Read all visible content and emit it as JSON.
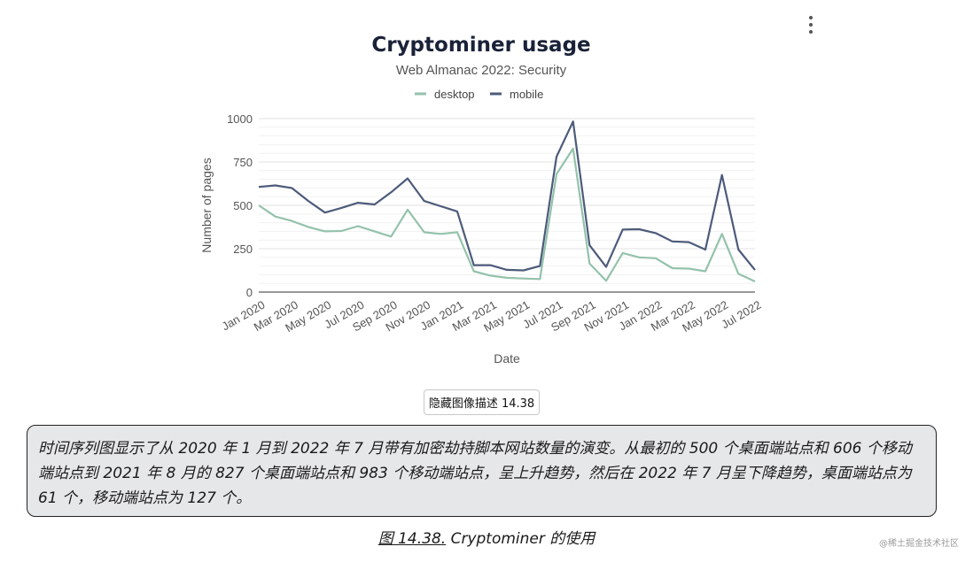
{
  "chart_data": {
    "type": "line",
    "title": "Cryptominer usage",
    "subtitle": "Web Almanac 2022: Security",
    "xlabel": "Date",
    "ylabel": "Number of pages",
    "ylim": [
      0,
      1000
    ],
    "yticks": [
      0,
      250,
      500,
      750,
      1000
    ],
    "xtick_labels": [
      "Jan 2020",
      "Mar 2020",
      "May 2020",
      "Jul 2020",
      "Sep 2020",
      "Nov 2020",
      "Jan 2021",
      "Mar 2021",
      "May 2021",
      "Jul 2021",
      "Sep 2021",
      "Nov 2021",
      "Jan 2022",
      "Mar 2022",
      "May 2022",
      "Jul 2022"
    ],
    "x": [
      "2020-01",
      "2020-02",
      "2020-03",
      "2020-04",
      "2020-05",
      "2020-06",
      "2020-07",
      "2020-08",
      "2020-09",
      "2020-10",
      "2020-11",
      "2020-12",
      "2021-01",
      "2021-02",
      "2021-03",
      "2021-04",
      "2021-05",
      "2021-06",
      "2021-07",
      "2021-08",
      "2021-09",
      "2021-10",
      "2021-11",
      "2021-12",
      "2022-01",
      "2022-02",
      "2022-03",
      "2022-04",
      "2022-05",
      "2022-06",
      "2022-07"
    ],
    "legend_position": "top-center",
    "grid": true,
    "series": [
      {
        "name": "desktop",
        "color": "#94c2ac",
        "values": [
          500,
          435,
          410,
          375,
          350,
          352,
          380,
          350,
          320,
          475,
          345,
          335,
          345,
          120,
          95,
          82,
          78,
          75,
          680,
          827,
          165,
          65,
          225,
          200,
          195,
          138,
          135,
          120,
          335,
          105,
          61
        ]
      },
      {
        "name": "mobile",
        "color": "#4d5b7a",
        "values": [
          606,
          615,
          600,
          525,
          458,
          485,
          515,
          505,
          575,
          655,
          525,
          495,
          465,
          155,
          155,
          128,
          125,
          150,
          780,
          983,
          270,
          145,
          360,
          362,
          340,
          292,
          288,
          245,
          675,
          245,
          127
        ]
      }
    ]
  },
  "menu": {
    "icon": "more-vertical-icon"
  },
  "toggle_button_label": "隐藏图像描述 14.38",
  "description": "时间序列图显示了从 2020 年 1 月到 2022 年 7 月带有加密劫持脚本网站数量的演变。从最初的 500 个桌面端站点和 606 个移动端站点到 2021 年 8 月的 827 个桌面端站点和 983 个移动端站点，呈上升趋势，然后在 2022 年 7 月呈下降趋势，桌面端站点为 61 个，移动端站点为 127 个。",
  "caption": {
    "link": "图 14.38.",
    "text": " Cryptominer 的使用"
  },
  "watermark": "@稀土掘金技术社区"
}
